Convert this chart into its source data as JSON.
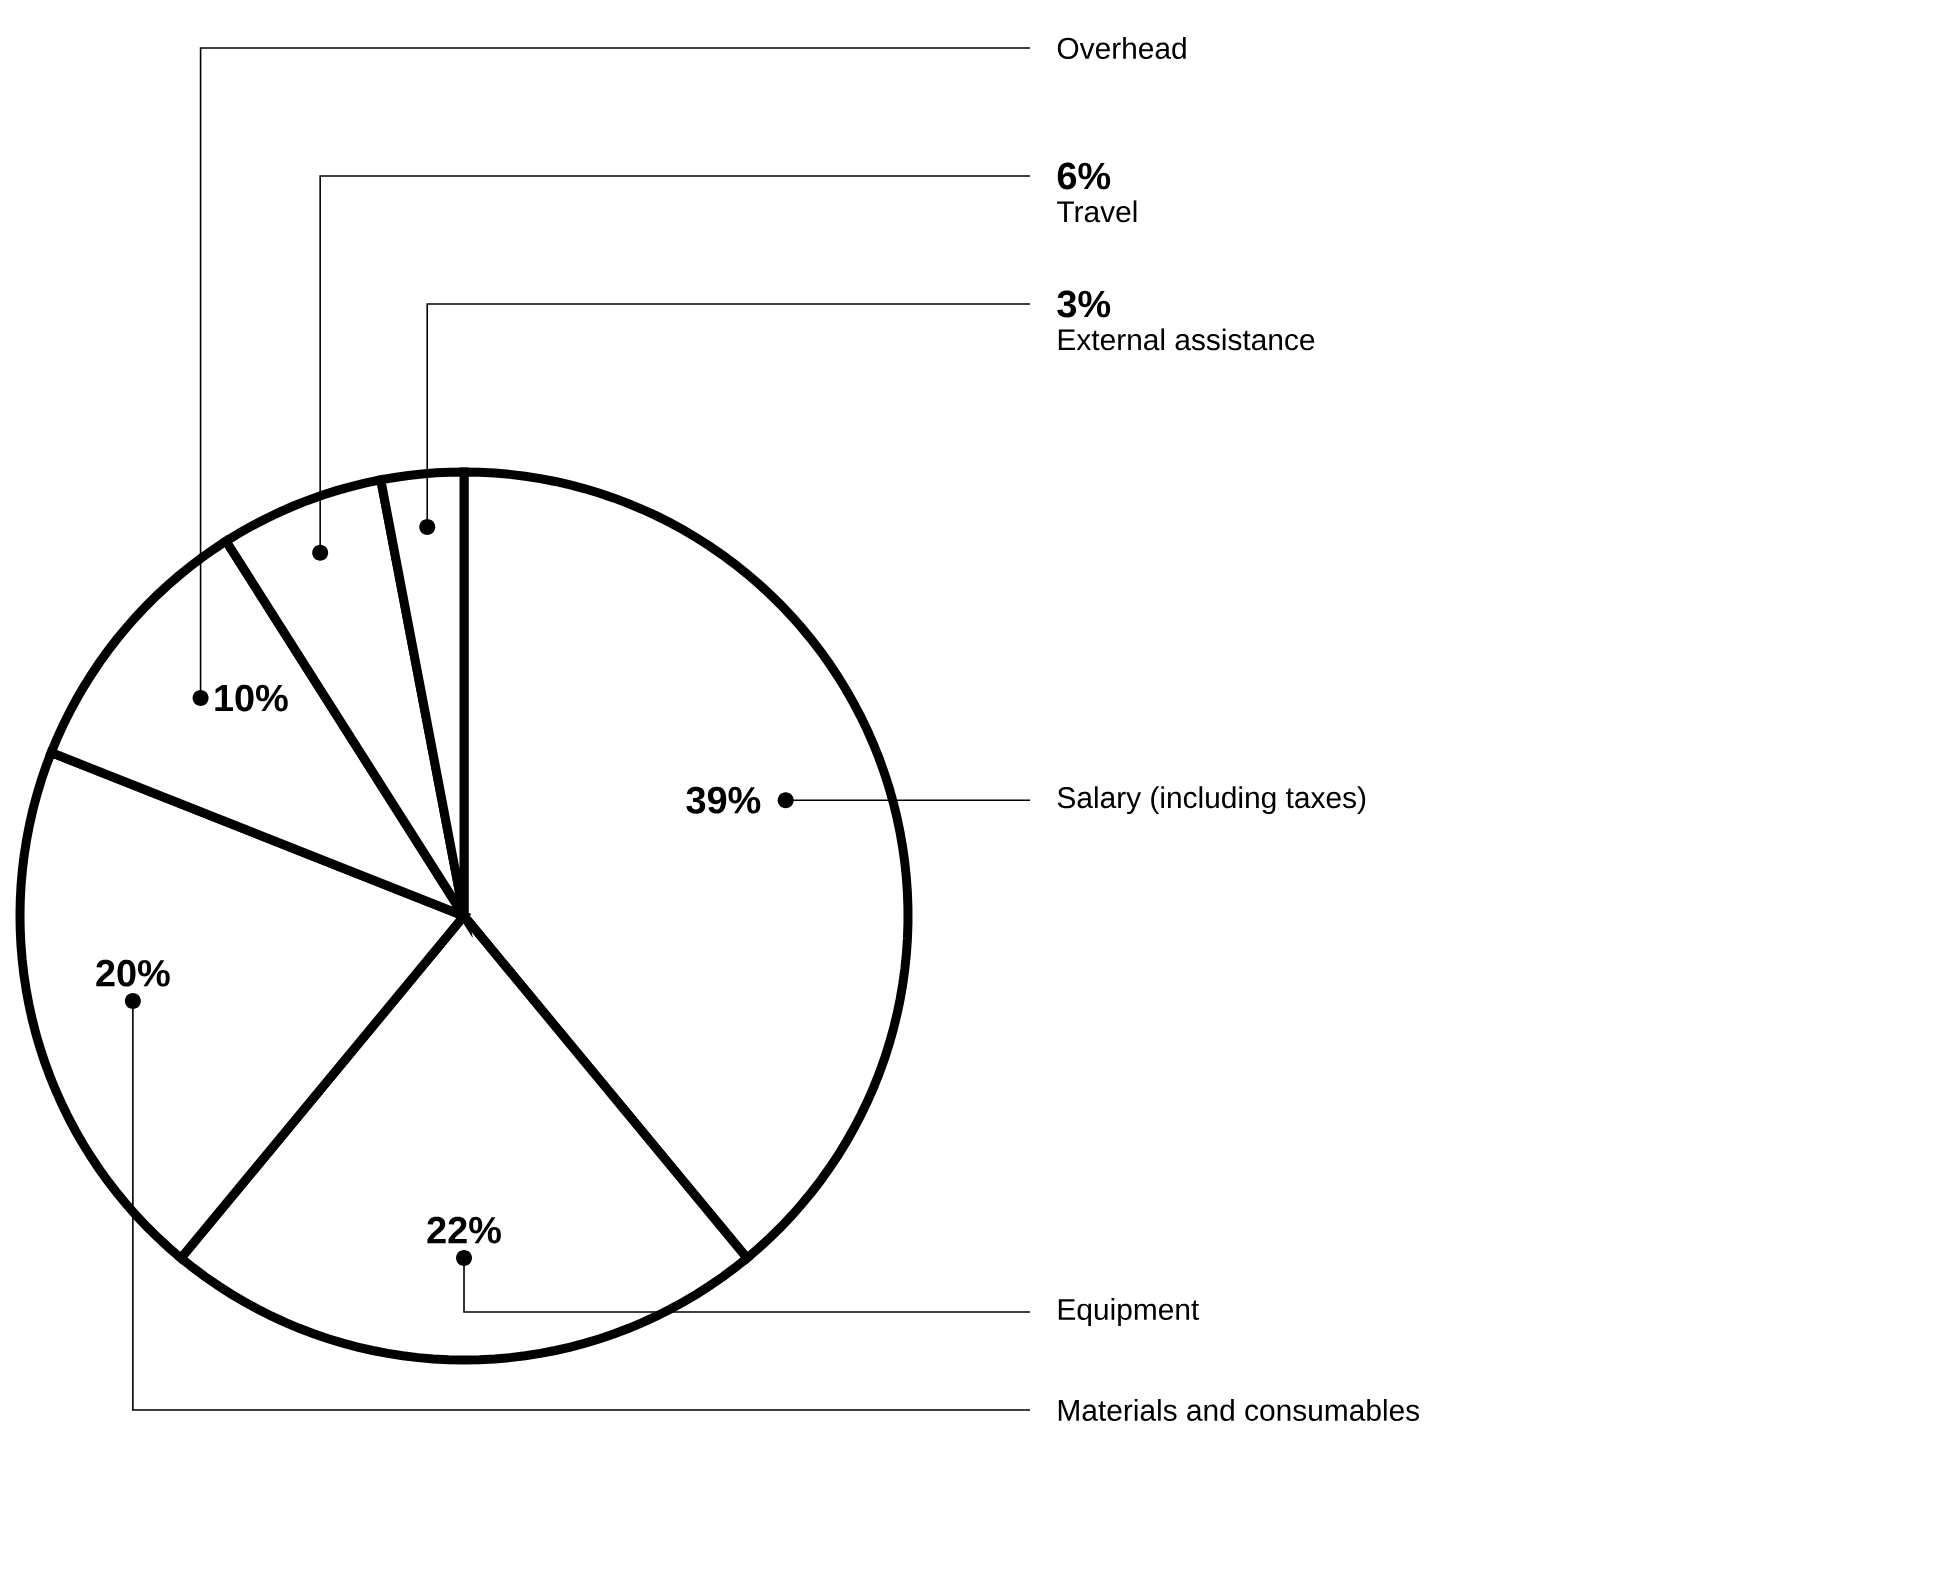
{
  "chart_data": {
    "type": "pie",
    "categories": [
      "Salary (including taxes)",
      "Equipment",
      "Materials and consumables",
      "Overhead",
      "Travel",
      "External assistance"
    ],
    "values": [
      39,
      22,
      20,
      10,
      6,
      3
    ],
    "value_labels": [
      "39%",
      "22%",
      "20%",
      "10%",
      "6%",
      "3%"
    ],
    "colors": [
      "#ffffff",
      "#ffffff",
      "#ffffff",
      "#ffffff",
      "#ffffff",
      "#ffffff"
    ]
  }
}
